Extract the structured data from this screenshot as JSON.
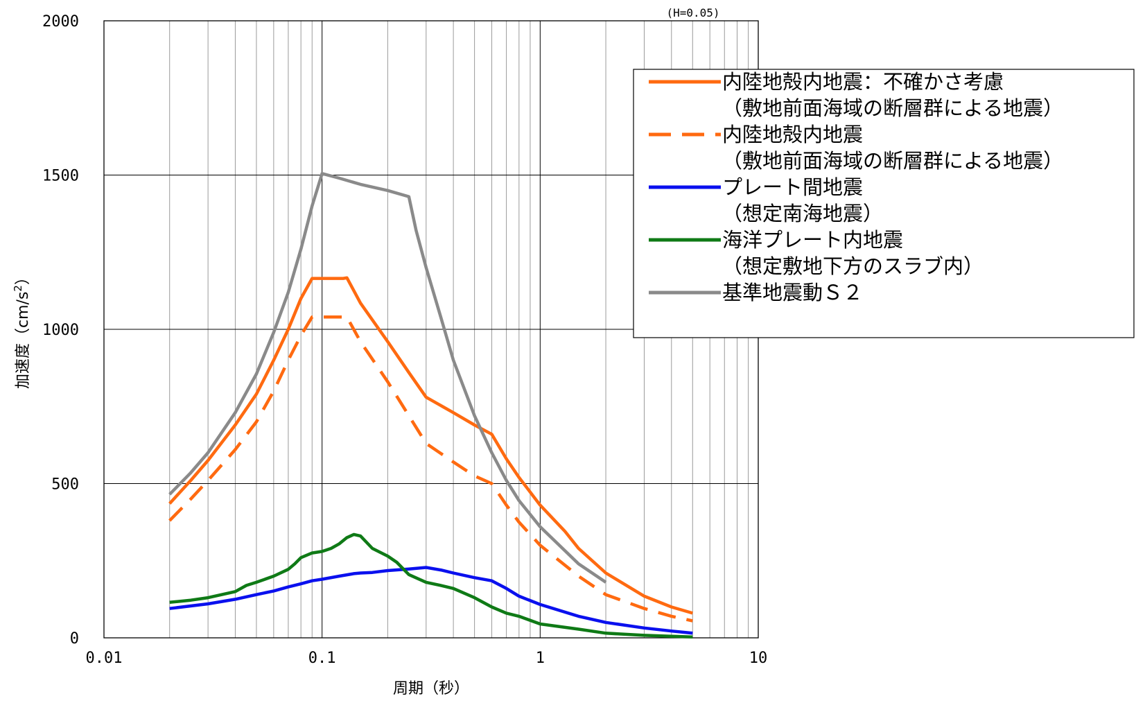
{
  "chart_data": {
    "type": "line",
    "title": "",
    "note": "(H=0.05)",
    "xlabel": "周期（秒）",
    "ylabel": "加速度（cm/s",
    "ylabel_sup": "2",
    "ylabel_close": "）",
    "xscale": "log",
    "xlim": [
      0.01,
      10
    ],
    "ylim": [
      0,
      2000
    ],
    "x_tick_labels": [
      "0.01",
      "0.1",
      "1",
      "10"
    ],
    "y_tick_labels": [
      "0",
      "500",
      "1000",
      "1500",
      "2000"
    ],
    "grid": true,
    "legend_position": "top-right",
    "series": [
      {
        "name": "内陸地殻内地震：不確かさ考慮",
        "name_line2": "（敷地前面海域の断層群による地震）",
        "color": "#ff6a10",
        "style": "solid",
        "x": [
          0.02,
          0.025,
          0.03,
          0.04,
          0.05,
          0.06,
          0.07,
          0.08,
          0.09,
          0.1,
          0.125,
          0.13,
          0.15,
          0.2,
          0.25,
          0.3,
          0.4,
          0.5,
          0.6,
          0.7,
          0.8,
          1.0,
          1.3,
          1.5,
          2.0,
          3.0,
          4.0,
          5.0
        ],
        "y": [
          435,
          510,
          575,
          690,
          790,
          900,
          1000,
          1100,
          1165,
          1165,
          1165,
          1167,
          1085,
          960,
          860,
          780,
          730,
          690,
          660,
          580,
          520,
          430,
          345,
          290,
          210,
          135,
          100,
          80
        ]
      },
      {
        "name": "内陸地殻内地震",
        "name_line2": "（敷地前面海域の断層群による地震）",
        "color": "#ff6a10",
        "style": "dashed",
        "x": [
          0.02,
          0.025,
          0.03,
          0.04,
          0.05,
          0.06,
          0.07,
          0.08,
          0.09,
          0.1,
          0.13,
          0.15,
          0.2,
          0.25,
          0.3,
          0.4,
          0.5,
          0.6,
          0.7,
          0.8,
          1.0,
          1.5,
          2.0,
          3.0,
          4.0,
          5.0
        ],
        "y": [
          380,
          450,
          510,
          610,
          700,
          800,
          900,
          980,
          1040,
          1040,
          1040,
          960,
          830,
          720,
          630,
          570,
          525,
          500,
          430,
          375,
          300,
          200,
          140,
          95,
          70,
          55
        ]
      },
      {
        "name": "プレート間地震",
        "name_line2": "（想定南海地震）",
        "color": "#0a10ee",
        "style": "solid",
        "x": [
          0.02,
          0.03,
          0.04,
          0.05,
          0.06,
          0.07,
          0.08,
          0.09,
          0.1,
          0.12,
          0.14,
          0.15,
          0.17,
          0.2,
          0.25,
          0.3,
          0.35,
          0.4,
          0.5,
          0.6,
          0.7,
          0.8,
          1.0,
          1.5,
          2.0,
          3.0,
          4.0,
          5.0
        ],
        "y": [
          95,
          110,
          125,
          140,
          152,
          165,
          175,
          185,
          190,
          200,
          208,
          210,
          212,
          218,
          223,
          228,
          220,
          210,
          195,
          185,
          160,
          135,
          108,
          70,
          50,
          32,
          22,
          15
        ]
      },
      {
        "name": "海洋プレート内地震",
        "name_line2": "（想定敷地下方のスラブ内）",
        "color": "#0f7a16",
        "style": "solid",
        "x": [
          0.02,
          0.025,
          0.03,
          0.04,
          0.045,
          0.05,
          0.06,
          0.07,
          0.075,
          0.08,
          0.09,
          0.1,
          0.11,
          0.12,
          0.13,
          0.14,
          0.15,
          0.17,
          0.2,
          0.22,
          0.25,
          0.3,
          0.35,
          0.4,
          0.5,
          0.6,
          0.7,
          0.8,
          1.0,
          1.5,
          2.0,
          3.0,
          4.0,
          5.0
        ],
        "y": [
          115,
          122,
          130,
          150,
          170,
          180,
          200,
          222,
          240,
          260,
          275,
          280,
          290,
          305,
          325,
          335,
          330,
          290,
          265,
          245,
          205,
          180,
          170,
          160,
          130,
          100,
          80,
          70,
          45,
          28,
          15,
          8,
          5,
          3
        ]
      },
      {
        "name": "基準地震動Ｓ２",
        "name_line2": "",
        "color": "#8a8a8a",
        "style": "solid",
        "x": [
          0.02,
          0.025,
          0.03,
          0.04,
          0.05,
          0.06,
          0.07,
          0.08,
          0.09,
          0.1,
          0.12,
          0.15,
          0.2,
          0.25,
          0.27,
          0.3,
          0.35,
          0.4,
          0.5,
          0.6,
          0.7,
          0.8,
          1.0,
          1.5,
          2.0
        ],
        "y": [
          465,
          535,
          600,
          730,
          855,
          990,
          1120,
          1260,
          1400,
          1505,
          1490,
          1470,
          1450,
          1430,
          1320,
          1200,
          1040,
          900,
          720,
          600,
          510,
          445,
          360,
          240,
          180
        ]
      }
    ]
  }
}
